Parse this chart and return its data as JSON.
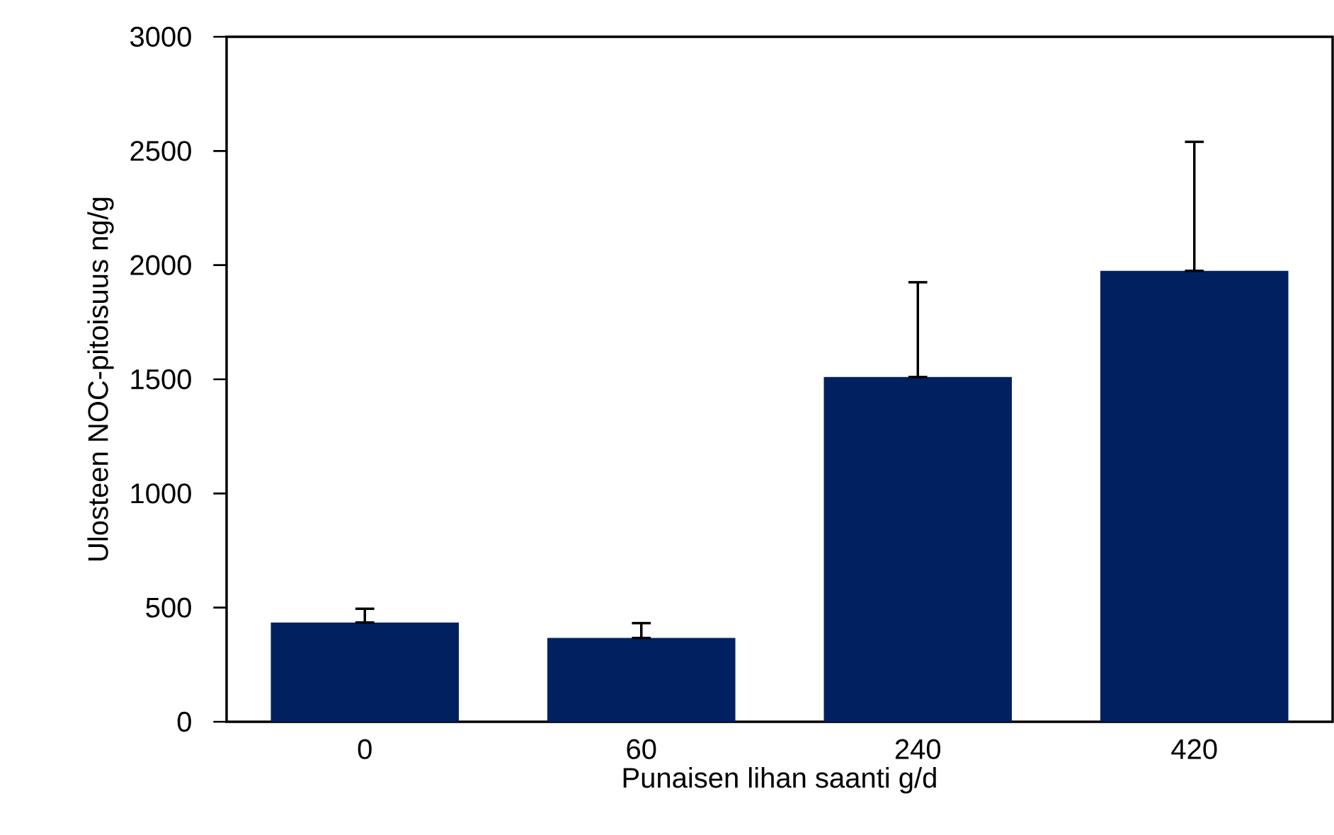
{
  "chart_data": {
    "type": "bar",
    "xlabel": "Punaisen lihan saanti g/d",
    "ylabel": "Ulosteen NOC-pitoisuus ng/g",
    "categories": [
      "0",
      "60",
      "240",
      "420"
    ],
    "values": [
      435,
      367,
      1510,
      1975
    ],
    "errors": [
      [
        435,
        495
      ],
      [
        367,
        432
      ],
      [
        1510,
        1925
      ],
      [
        1975,
        2540
      ]
    ],
    "color": "#002060",
    "ylim": [
      0,
      3000
    ],
    "yticks": [
      0,
      500,
      1000,
      1500,
      2000,
      2500,
      3000
    ],
    "grid": false
  }
}
